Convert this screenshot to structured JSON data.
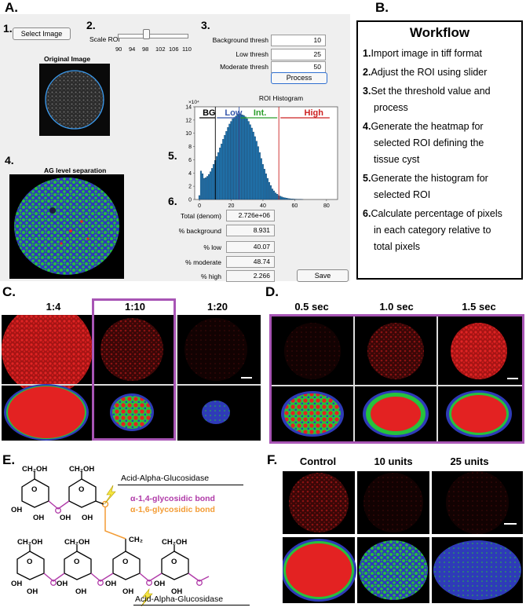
{
  "panels": {
    "a": "A.",
    "b": "B.",
    "c": "C.",
    "d": "D.",
    "e": "E.",
    "f": "F."
  },
  "gui": {
    "step1": "1.",
    "step2": "2.",
    "step3": "3.",
    "step4": "4.",
    "step5": "5.",
    "step6": "6.",
    "select_image": "Select Image",
    "scale_roi": "Scale ROI",
    "slider_ticks": [
      "90",
      "94",
      "98",
      "102",
      "106",
      "110"
    ],
    "slider_value_percent": 40,
    "original_image_title": "Original Image",
    "ag_title": "AG level separation",
    "thresholds": [
      {
        "label": "Background thresh",
        "value": "10"
      },
      {
        "label": "Low thresh",
        "value": "25"
      },
      {
        "label": "Moderate thresh",
        "value": "50"
      }
    ],
    "process": "Process",
    "stats": [
      {
        "label": "Total (denom)",
        "value": "2.726e+06"
      },
      {
        "label": "% background",
        "value": "8.931"
      },
      {
        "label": "% low",
        "value": "40.07"
      },
      {
        "label": "% moderate",
        "value": "48.74"
      },
      {
        "label": "% high",
        "value": "2.266"
      }
    ],
    "save": "Save"
  },
  "chart_data": {
    "type": "bar",
    "title": "ROI Histogram",
    "exponent_label": "×10⁴",
    "xlim": [
      -3,
      87
    ],
    "ylim": [
      0,
      14
    ],
    "yticks": [
      "0",
      "2",
      "4",
      "6",
      "8",
      "10",
      "12",
      "14"
    ],
    "xticks": [
      "0",
      "20",
      "40",
      "60",
      "80"
    ],
    "x": [
      0,
      1,
      2,
      3,
      4,
      5,
      6,
      7,
      8,
      9,
      10,
      11,
      12,
      13,
      14,
      15,
      16,
      17,
      18,
      19,
      20,
      21,
      22,
      23,
      24,
      25,
      26,
      27,
      28,
      29,
      30,
      31,
      32,
      33,
      34,
      35,
      36,
      37,
      38,
      39,
      40,
      41,
      42,
      43,
      44,
      45,
      46,
      47,
      48,
      49,
      50,
      51,
      52,
      53,
      54,
      55,
      56,
      57,
      58,
      59,
      60,
      61,
      62,
      63,
      64,
      65
    ],
    "values": [
      0.6,
      4.3,
      3.9,
      3.2,
      3.3,
      3.5,
      3.8,
      4.2,
      4.7,
      5.3,
      5.9,
      6.5,
      7.1,
      7.8,
      8.4,
      9.1,
      9.7,
      10.3,
      10.9,
      11.4,
      11.8,
      12.2,
      12.4,
      12.6,
      12.8,
      12.9,
      12.9,
      12.8,
      12.7,
      12.5,
      12.2,
      11.8,
      11.3,
      10.8,
      10.2,
      9.5,
      8.8,
      8.0,
      7.1,
      6.2,
      5.3,
      4.6,
      3.9,
      3.2,
      2.6,
      2.1,
      1.6,
      1.3,
      1.0,
      0.8,
      0.6,
      0.5,
      0.4,
      0.3,
      0.25,
      0.2,
      0.15,
      0.12,
      0.1,
      0.08,
      0.06,
      0.05,
      0.04,
      0.03,
      0.02,
      0.01
    ],
    "thresholds": [
      {
        "name": "BG",
        "x": 10,
        "color": "#000000"
      },
      {
        "name": "Low",
        "x": 25,
        "color": "#3355aa"
      },
      {
        "name": "Int.",
        "x": 25,
        "color": "#2a9d2a"
      },
      {
        "name": "High",
        "x": 50,
        "color": "#cc2222"
      }
    ],
    "bar_color": "#1f77b4"
  },
  "workflow": {
    "title": "Workflow",
    "items": [
      {
        "num": "1.",
        "lines": [
          "Import image in tiff format"
        ]
      },
      {
        "num": "2.",
        "lines": [
          "Adjust the ROI using slider"
        ]
      },
      {
        "num": "3.",
        "lines": [
          "Set the threshold value and",
          "process"
        ]
      },
      {
        "num": "4.",
        "lines": [
          "Generate the heatmap for",
          "selected ROI defining the",
          "tissue cyst"
        ]
      },
      {
        "num": "5.",
        "lines": [
          "Generate the histogram for",
          "selected ROI"
        ]
      },
      {
        "num": "6.",
        "lines": [
          "Calculate percentage of pixels",
          "in each category relative to",
          "total pixels"
        ]
      }
    ]
  },
  "panel_c": {
    "labels": [
      "1:4",
      "1:10",
      "1:20"
    ]
  },
  "panel_d": {
    "labels": [
      "0.5 sec",
      "1.0 sec",
      "1.5 sec"
    ]
  },
  "panel_f": {
    "labels": [
      "Control",
      "10 units",
      "25 units"
    ]
  },
  "panel_e": {
    "enzyme_top": "Acid-Alpha-Glucosidase",
    "enzyme_bottom": "Acid-Alpha-Glucosidase",
    "bond1": "α-1,4-glycosidic bond",
    "bond2": "α-1,6-glycosidic bond",
    "ch2oh": "CH₂OH",
    "ch2": "CH₂",
    "oh": "OH",
    "o": "O",
    "colors": {
      "bond14": "#b03aa8",
      "bond16": "#f39c35",
      "bolt": "#f5e642"
    }
  },
  "colors": {
    "purple_frame": "#a855b5",
    "heat_blue": "#2e3bb8",
    "heat_green": "#27c23c",
    "heat_red": "#e32222",
    "fluor_red": "#d61c1c"
  }
}
